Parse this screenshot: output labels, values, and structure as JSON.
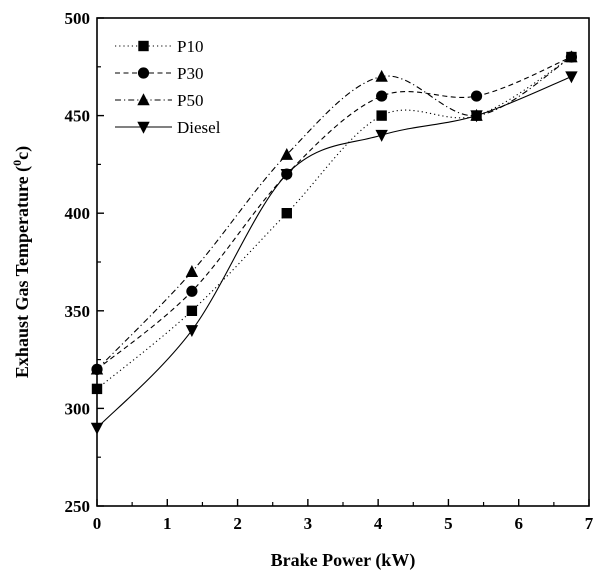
{
  "chart_data": {
    "type": "line",
    "xlabel": "Brake Power (kW)",
    "ylabel_main": "Exhaust Gas Temperature (",
    "ylabel_sup": "0",
    "ylabel_tail": "c)",
    "xlim": [
      0,
      7
    ],
    "ylim": [
      250,
      500
    ],
    "x_ticks": [
      "0",
      "1",
      "2",
      "3",
      "4",
      "5",
      "6",
      "7"
    ],
    "y_ticks": [
      "250",
      "300",
      "350",
      "400",
      "450",
      "500"
    ],
    "grid": false,
    "legend_position": "top-left",
    "x": [
      0,
      1.35,
      2.7,
      4.05,
      5.4,
      6.75
    ],
    "series": [
      {
        "name": "P10",
        "marker": "square",
        "dash": "dotted",
        "values": [
          310,
          350,
          400,
          450,
          450,
          480
        ]
      },
      {
        "name": "P30",
        "marker": "circle",
        "dash": "dashed",
        "values": [
          320,
          360,
          420,
          460,
          460,
          480
        ]
      },
      {
        "name": "P50",
        "marker": "triangle-up",
        "dash": "dash-dot",
        "values": [
          320,
          370,
          430,
          470,
          450,
          480
        ]
      },
      {
        "name": "Diesel",
        "marker": "triangle-down",
        "dash": "solid",
        "values": [
          290,
          340,
          420,
          440,
          450,
          470
        ]
      }
    ]
  }
}
